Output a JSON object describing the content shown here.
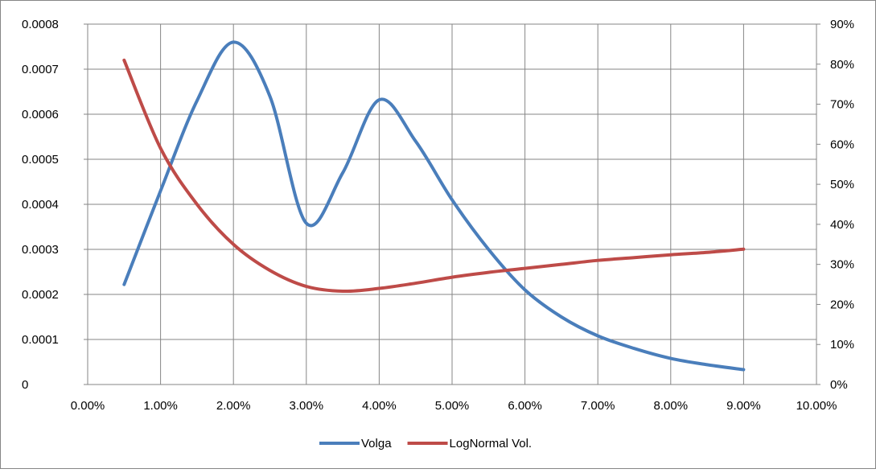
{
  "chart_data": {
    "type": "line",
    "title": "",
    "x": [
      0.5,
      1,
      1.5,
      2,
      2.5,
      3,
      3.5,
      4,
      4.5,
      5,
      5.5,
      6,
      6.5,
      7,
      7.5,
      8,
      8.5,
      9
    ],
    "x_axis": {
      "range": [
        0,
        10
      ],
      "ticks": [
        0,
        1,
        2,
        3,
        4,
        5,
        6,
        7,
        8,
        9,
        10
      ],
      "tick_labels": [
        "0.00%",
        "1.00%",
        "2.00%",
        "3.00%",
        "4.00%",
        "5.00%",
        "6.00%",
        "7.00%",
        "8.00%",
        "9.00%",
        "10.00%"
      ]
    },
    "y_left": {
      "range": [
        0,
        0.0008
      ],
      "ticks": [
        0,
        0.0001,
        0.0002,
        0.0003,
        0.0004,
        0.0005,
        0.0006,
        0.0007,
        0.0008
      ],
      "tick_labels": [
        "0",
        "0.0001",
        "0.0002",
        "0.0003",
        "0.0004",
        "0.0005",
        "0.0006",
        "0.0007",
        "0.0008"
      ]
    },
    "y_right": {
      "range": [
        0,
        90
      ],
      "ticks": [
        0,
        10,
        20,
        30,
        40,
        50,
        60,
        70,
        80,
        90
      ],
      "tick_labels": [
        "0%",
        "10%",
        "20%",
        "30%",
        "40%",
        "50%",
        "60%",
        "70%",
        "80%",
        "90%"
      ]
    },
    "grid": true,
    "legend_position": "bottom",
    "series": [
      {
        "name": "Volga",
        "axis": "left",
        "color": "#4a7ebb",
        "values": [
          0.000222,
          0.00043,
          0.00063,
          0.00076,
          0.00064,
          0.000358,
          0.00047,
          0.000632,
          0.00054,
          0.00041,
          0.0003,
          0.00021,
          0.00015,
          0.000108,
          8e-05,
          5.8e-05,
          4.4e-05,
          3.3e-05
        ]
      },
      {
        "name": "LogNormal Vol.",
        "axis": "right",
        "color": "#be4b48",
        "values": [
          81.0,
          59.0,
          45.0,
          35.0,
          28.5,
          24.5,
          23.3,
          24.0,
          25.3,
          26.8,
          28.0,
          29.0,
          30.0,
          31.0,
          31.7,
          32.4,
          33.0,
          33.8
        ]
      }
    ]
  }
}
